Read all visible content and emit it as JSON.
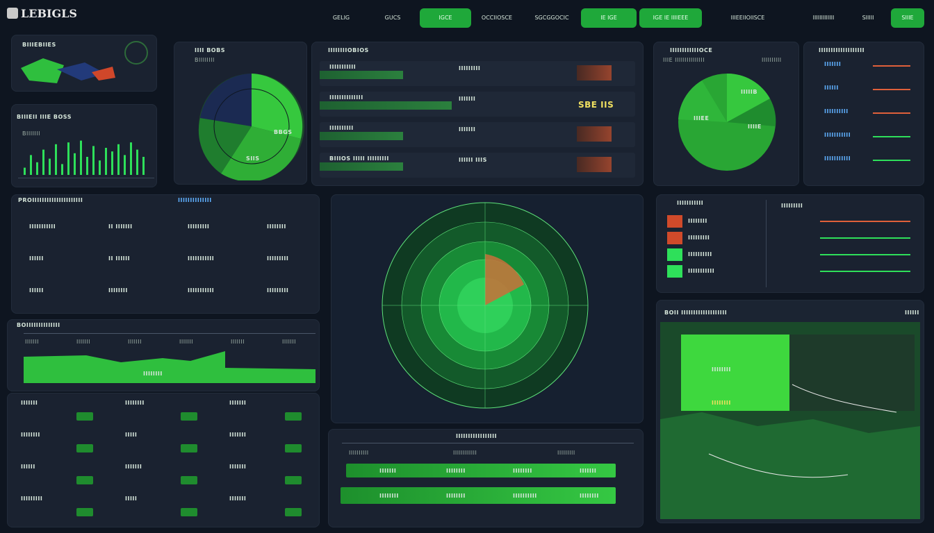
{
  "header": {
    "logo": "LEBIGLS",
    "tabs": [
      {
        "label": "GELIG",
        "active": false
      },
      {
        "label": "GUCS",
        "active": false
      },
      {
        "label": "IGCE",
        "active": true
      },
      {
        "label": "OCCIIOSCE",
        "active": false
      },
      {
        "label": "SGCGGOCIC",
        "active": false
      },
      {
        "label": "IE IGE",
        "active": true
      },
      {
        "label": "IGE IE IIIIEEE",
        "active": true
      },
      {
        "label": "IIIEEIIOIISCE",
        "active": false
      },
      {
        "label": "IIIIIIIIIIIII",
        "active": false
      },
      {
        "label": "SIIIII",
        "active": false
      },
      {
        "label": "SIIIE",
        "active": true
      }
    ]
  },
  "top_left": {
    "title": "BIIIEBIIES"
  },
  "bars_panel": {
    "title": "BIIIEII IIIE BOSS",
    "sub": "BIIIIIII",
    "values": [
      0.2,
      0.55,
      0.35,
      0.7,
      0.45,
      0.85,
      0.3,
      0.9,
      0.6,
      0.95,
      0.5,
      0.8,
      0.4,
      0.75,
      0.65,
      0.85,
      0.55,
      0.9,
      0.7,
      0.5
    ]
  },
  "pie_panel": {
    "title": "IIII BOBS",
    "sub": "BIIIIIIII",
    "label_a": "BBGS",
    "label_b": "SIIS"
  },
  "mid_table": {
    "title": "IIIIIIIIOBIOS",
    "rows": [
      {
        "a": "IIIIIIIIIII",
        "b": "IIIIIIIII",
        "c": ""
      },
      {
        "a": "IIIIIIIIIIIIII",
        "b": "IIIIIII",
        "c": "SBE  IIS"
      },
      {
        "a": "IIIIIIIIII",
        "b": "IIIIIII",
        "c": ""
      },
      {
        "a": "BIIIOS  IIIII  IIIIIIIII",
        "b": "IIIIII  IIIS",
        "c": ""
      }
    ]
  },
  "right_pie": {
    "title": "IIIIIIIIIIIIOCE",
    "sub": "IIIE IIIIIIIIIIIIIII",
    "sub2": "IIIIIIIIII",
    "l1": "IIIIIB",
    "l2": "IIIEE",
    "l3": "IIIIE"
  },
  "far_right": {
    "title": "IIIIIIIIIIIIIIIIIII",
    "items": [
      "IIIIIII",
      "IIIIII",
      "IIIIIIIIII",
      "IIIIIIIIIII",
      "IIIIIIIIIII"
    ]
  },
  "grid_panel": {
    "title": "PROIIIIIIIIIIIIIIIIIIIII",
    "tag": "IIIIIIIIIIIIII",
    "cells": [
      "IIIIIIIIIII",
      "II IIIIIII",
      "IIIIIIIII",
      "IIIIIIII",
      "IIIIII",
      "II IIIIII",
      "IIIIIIIIIII",
      "IIIIIIIII",
      "IIIIII",
      "IIIIIIII",
      "IIIIIIIIIII",
      "IIIIIIIII"
    ]
  },
  "radar": {
    "label": "RADAR"
  },
  "small_right": {
    "title": "IIIIIIIIIII",
    "title2": "IIIIIIIII",
    "items": [
      "IIIIIIII",
      "IIIIIIIII",
      "IIIIIIIIII",
      "IIIIIIIIIII"
    ]
  },
  "area_panel": {
    "title": "BOIIIIIIIIIIIIII",
    "ticks": [
      "IIIIIII",
      "IIIIIII",
      "IIIIIII",
      "IIIIIII",
      "IIIIIII",
      "IIIIIII"
    ],
    "mid": "IIIIIIII"
  },
  "lower_grid": {
    "cells": [
      "IIIIIII",
      "IIIIIIII",
      "IIIIIII",
      "IIIIIIII",
      "IIIII",
      "IIIIIII",
      "IIIIII",
      "IIIIIII",
      "IIIIIII",
      "IIIIIIIII",
      "IIIII",
      "IIIIIII"
    ]
  },
  "bottom_table": {
    "title": "IIIIIIIIIIIIIIIII",
    "cols": [
      "IIIIIIIIII",
      "IIIIIIIIIIII",
      "IIIIIIIII"
    ],
    "r1": [
      "IIIIIII",
      "IIIIIIII",
      "IIIIIIII",
      "IIIIIII"
    ],
    "r2": [
      "IIIIIIII",
      "IIIIIIII",
      "IIIIIIIIII",
      "IIIIIIII"
    ]
  },
  "map_panel": {
    "title": "BOII IIIIIIIIIIIIIIIIIII",
    "label": "IIIIIIII",
    "tag": "IIIIIIII",
    "corner": "IIIIII"
  }
}
